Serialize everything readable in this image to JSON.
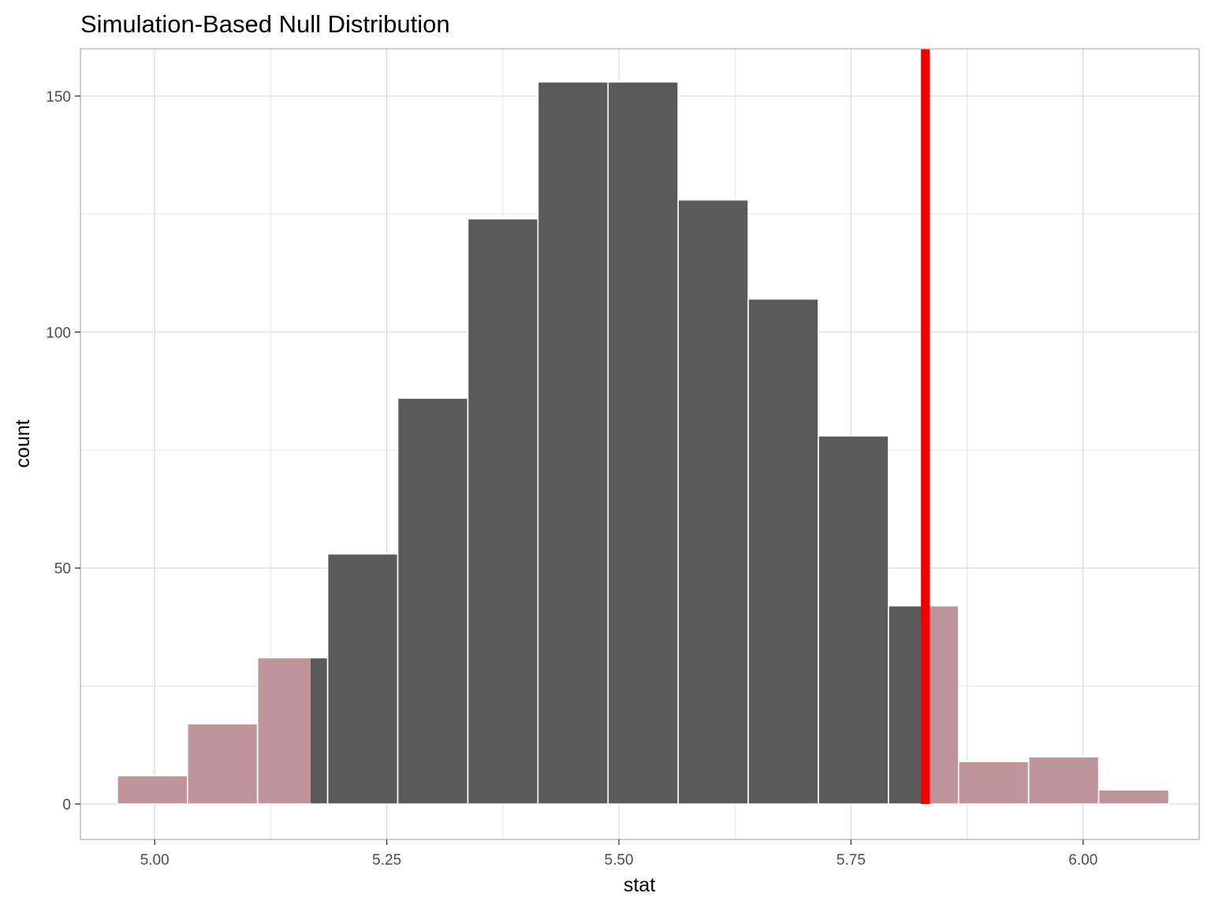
{
  "chart_data": {
    "type": "bar",
    "title": "Simulation-Based Null Distribution",
    "xlabel": "stat",
    "ylabel": "count",
    "xlim": [
      4.92,
      6.125
    ],
    "ylim": [
      -7.5,
      160
    ],
    "x_ticks": [
      "5.00",
      "5.25",
      "5.50",
      "5.75",
      "6.00"
    ],
    "x_tick_values": [
      5.0,
      5.25,
      5.5,
      5.75,
      6.0
    ],
    "y_ticks": [
      "0",
      "50",
      "100",
      "150"
    ],
    "y_tick_values": [
      0,
      50,
      100,
      150
    ],
    "grid": true,
    "bin_width": 0.0755,
    "bins": [
      {
        "start": 4.9598,
        "end": 5.0353,
        "count": 6
      },
      {
        "start": 5.0353,
        "end": 5.1108,
        "count": 17
      },
      {
        "start": 5.1108,
        "end": 5.1863,
        "count": 31
      },
      {
        "start": 5.1863,
        "end": 5.2618,
        "count": 53
      },
      {
        "start": 5.2618,
        "end": 5.3373,
        "count": 86
      },
      {
        "start": 5.3373,
        "end": 5.4128,
        "count": 124
      },
      {
        "start": 5.4128,
        "end": 5.4883,
        "count": 153
      },
      {
        "start": 5.4883,
        "end": 5.5638,
        "count": 153
      },
      {
        "start": 5.5638,
        "end": 5.6393,
        "count": 128
      },
      {
        "start": 5.6393,
        "end": 5.7148,
        "count": 107
      },
      {
        "start": 5.7148,
        "end": 5.7903,
        "count": 78
      },
      {
        "start": 5.7903,
        "end": 5.8658,
        "count": 42
      },
      {
        "start": 5.8658,
        "end": 5.9413,
        "count": 9
      },
      {
        "start": 5.9413,
        "end": 6.0168,
        "count": 10
      },
      {
        "start": 6.0168,
        "end": 6.0923,
        "count": 3
      }
    ],
    "shaded_below": 5.168,
    "shaded_above": 5.83,
    "observed_stat": 5.83,
    "colors": {
      "bar": "#5a5a5a",
      "shaded": "#bf959a",
      "bar_border": "#ffffff",
      "observed_line": "#ee0000",
      "grid": "#dedede",
      "panel_border": "#b3b3b3"
    }
  }
}
